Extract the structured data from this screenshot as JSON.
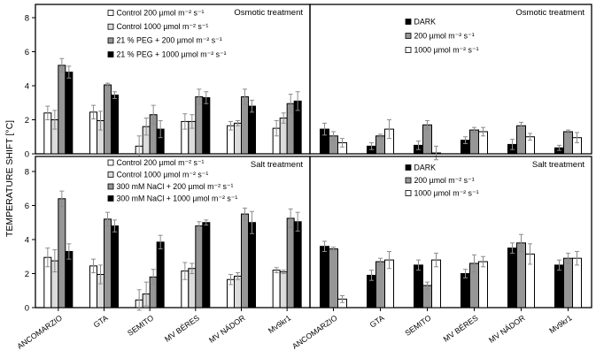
{
  "figure": {
    "y_axis_title": "TEMPERATURE SHIFT [°C]",
    "background": "#ffffff",
    "axis_color": "#000000",
    "error_bar_color": "#8c8c8c",
    "bar_colors": {
      "white": "#ffffff",
      "light_gray": "#dcdcdc",
      "dark_gray": "#969696",
      "black": "#000000"
    }
  },
  "chart_data": [
    {
      "type": "bar",
      "panel": "top-left",
      "title": "Osmotic treatment",
      "ylabel": "TEMPERATURE SHIFT [°C]",
      "ylim": [
        0,
        8.7
      ],
      "y_ticks": [
        0,
        2,
        4,
        6,
        8
      ],
      "grid": false,
      "legend_position": "upper-left-inside",
      "categories": [
        "ANCOMARZIO",
        "GTA",
        "SEMITO",
        "MV BÉRES",
        "MV NÁDOR",
        "Mv9kr1"
      ],
      "series": [
        {
          "name": "Control 200 µmol m⁻² s⁻¹",
          "fill": "#ffffff",
          "values": [
            2.4,
            2.45,
            0.45,
            1.9,
            1.65,
            1.5
          ],
          "errors": [
            0.4,
            0.4,
            0.6,
            0.45,
            0.25,
            0.45
          ]
        },
        {
          "name": "Control 1000 µmol m⁻² s⁻¹",
          "fill": "#dcdcdc",
          "values": [
            2.0,
            1.95,
            1.6,
            1.9,
            1.8,
            2.1
          ],
          "errors": [
            0.55,
            0.55,
            0.5,
            0.4,
            0.15,
            0.3
          ]
        },
        {
          "name": "21 % PEG + 200 µmol m⁻² s⁻¹",
          "fill": "#969696",
          "values": [
            5.2,
            4.05,
            2.3,
            3.35,
            3.35,
            2.95
          ],
          "errors": [
            0.4,
            0.1,
            0.55,
            0.45,
            0.45,
            0.55
          ]
        },
        {
          "name": "21 % PEG + 1000 µmol m⁻² s⁻¹",
          "fill": "#000000",
          "values": [
            4.8,
            3.45,
            1.45,
            3.3,
            2.8,
            3.1
          ],
          "errors": [
            0.35,
            0.2,
            0.5,
            0.35,
            0.35,
            0.55
          ]
        }
      ]
    },
    {
      "type": "bar",
      "panel": "top-right",
      "title": "Osmotic treatment",
      "ylabel": "TEMPERATURE SHIFT [°C]",
      "ylim": [
        0,
        8.7
      ],
      "y_ticks": [
        0,
        2,
        4,
        6,
        8
      ],
      "grid": false,
      "legend_position": "upper-left-inside",
      "categories": [
        "ANCOMARZIO",
        "GTA",
        "SEMITO",
        "MV BÉRES",
        "MV NÁDOR",
        "Mv9kr1"
      ],
      "series": [
        {
          "name": "DARK",
          "fill": "#000000",
          "values": [
            1.45,
            0.45,
            0.5,
            0.8,
            0.55,
            0.35
          ],
          "errors": [
            0.35,
            0.2,
            0.25,
            0.2,
            0.3,
            0.15
          ]
        },
        {
          "name": "200 µmol m⁻² s⁻¹",
          "fill": "#969696",
          "values": [
            1.05,
            1.05,
            1.7,
            1.4,
            1.65,
            1.3
          ],
          "errors": [
            0.25,
            0.1,
            0.25,
            0.15,
            0.2,
            0.1
          ]
        },
        {
          "name": "1000 µmol m⁻² s⁻¹",
          "fill": "#ffffff",
          "values": [
            0.65,
            1.45,
            0.05,
            1.3,
            1.0,
            0.95
          ],
          "errors": [
            0.25,
            0.55,
            0.4,
            0.25,
            0.2,
            0.3
          ]
        }
      ]
    },
    {
      "type": "bar",
      "panel": "bottom-left",
      "title": "Salt treatment",
      "ylabel": "TEMPERATURE SHIFT [°C]",
      "ylim": [
        0,
        8.9
      ],
      "y_ticks": [
        0,
        2,
        4,
        6,
        8
      ],
      "grid": false,
      "legend_position": "upper-left-inside",
      "categories": [
        "ANCOMARZIO",
        "GTA",
        "SEMITO",
        "MV BÉRES",
        "MV NÁDOR",
        "Mv9kr1"
      ],
      "series": [
        {
          "name": "Control 200 µmol m⁻² s⁻¹",
          "fill": "#ffffff",
          "values": [
            2.95,
            2.45,
            0.45,
            2.15,
            1.65,
            2.2
          ],
          "errors": [
            0.55,
            0.4,
            0.6,
            0.5,
            0.3,
            0.15
          ]
        },
        {
          "name": "Control 1000 µmol m⁻² s⁻¹",
          "fill": "#dcdcdc",
          "values": [
            2.75,
            1.95,
            0.8,
            2.3,
            1.85,
            2.1
          ],
          "errors": [
            0.65,
            0.55,
            0.7,
            0.3,
            0.2,
            0.1
          ]
        },
        {
          "name": "300 mM NaCl + 200 µmol m⁻² s⁻¹",
          "fill": "#969696",
          "values": [
            6.4,
            5.2,
            1.8,
            4.8,
            5.5,
            5.25
          ],
          "errors": [
            0.45,
            0.4,
            0.45,
            0.25,
            0.35,
            0.55
          ]
        },
        {
          "name": "300 mM NaCl + 1000 µmol m⁻² s⁻¹",
          "fill": "#000000",
          "values": [
            3.3,
            4.8,
            3.85,
            5.0,
            5.0,
            5.05
          ],
          "errors": [
            0.45,
            0.35,
            0.4,
            0.15,
            0.65,
            0.55
          ]
        }
      ]
    },
    {
      "type": "bar",
      "panel": "bottom-right",
      "title": "Salt treatment",
      "ylabel": "TEMPERATURE SHIFT [°C]",
      "ylim": [
        0,
        8.9
      ],
      "y_ticks": [
        0,
        2,
        4,
        6,
        8
      ],
      "grid": false,
      "legend_position": "upper-left-inside",
      "categories": [
        "ANCOMARZIO",
        "GTA",
        "SEMITO",
        "MV BÉRES",
        "MV NÁDOR",
        "Mv9kr1"
      ],
      "series": [
        {
          "name": "DARK",
          "fill": "#000000",
          "values": [
            3.6,
            1.9,
            2.5,
            2.0,
            3.5,
            2.5
          ],
          "errors": [
            0.3,
            0.3,
            0.3,
            0.25,
            0.3,
            0.3
          ]
        },
        {
          "name": "200 µmol m⁻² s⁻¹",
          "fill": "#969696",
          "values": [
            3.45,
            2.7,
            1.3,
            2.6,
            3.8,
            2.9
          ],
          "errors": [
            0.1,
            0.2,
            0.2,
            0.5,
            0.5,
            0.3
          ]
        },
        {
          "name": "1000 µmol m⁻² s⁻¹",
          "fill": "#ffffff",
          "values": [
            0.5,
            2.8,
            2.8,
            2.7,
            3.15,
            2.9
          ],
          "errors": [
            0.2,
            0.5,
            0.4,
            0.3,
            0.6,
            0.4
          ]
        }
      ]
    }
  ]
}
